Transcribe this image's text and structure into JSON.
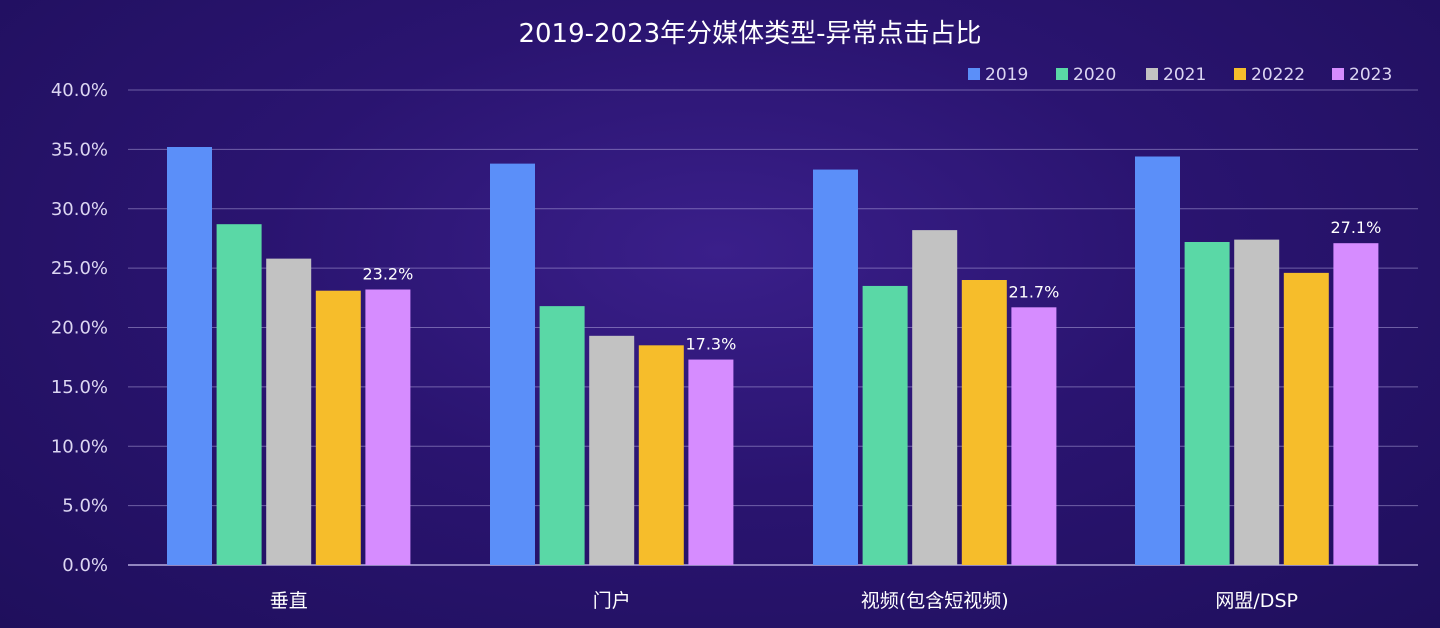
{
  "chart_data": {
    "type": "bar",
    "title": "2019-2023年分媒体类型-异常点击占比",
    "categories": [
      "垂直",
      "门户",
      "视频(包含短视频)",
      "网盟/DSP"
    ],
    "series": [
      {
        "name": "2019",
        "color": "#5b8ff9",
        "values": [
          35.2,
          33.8,
          33.3,
          34.4
        ]
      },
      {
        "name": "2020",
        "color": "#5ad8a6",
        "values": [
          28.7,
          21.8,
          23.5,
          27.2
        ]
      },
      {
        "name": "2021",
        "color": "#c2c2c2",
        "values": [
          25.8,
          19.3,
          28.2,
          27.4
        ]
      },
      {
        "name": "20222",
        "color": "#f6bd2b",
        "values": [
          23.1,
          18.5,
          24.0,
          24.6
        ]
      },
      {
        "name": "2023",
        "color": "#d68cff",
        "values": [
          23.2,
          17.3,
          21.7,
          27.1
        ]
      }
    ],
    "data_labels": [
      {
        "series": "2023",
        "category": "垂直",
        "text": "23.2%"
      },
      {
        "series": "2023",
        "category": "门户",
        "text": "17.3%"
      },
      {
        "series": "2023",
        "category": "视频(包含短视频)",
        "text": "21.7%"
      },
      {
        "series": "2023",
        "category": "网盟/DSP",
        "text": "27.1%"
      }
    ],
    "y_ticks": [
      "0.0%",
      "5.0%",
      "10.0%",
      "15.0%",
      "20.0%",
      "25.0%",
      "30.0%",
      "35.0%",
      "40.0%"
    ],
    "ylim": [
      0,
      40
    ],
    "xlabel": "",
    "ylabel": "",
    "grid": true,
    "legend_position": "top-right"
  }
}
